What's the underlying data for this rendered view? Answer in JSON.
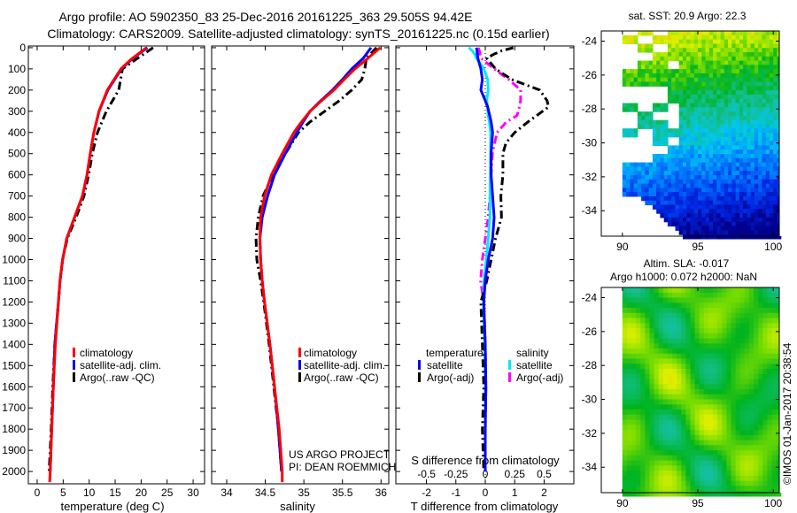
{
  "title": {
    "line1": "Argo profile: AO 5902350_83 25-Dec-2016 20161225_363 29.505S 94.42E",
    "line2": "Climatology: CARS2009. Satellite-adjusted climatology: synTS_20161225.nc (0.15d earlier)"
  },
  "credit": {
    "project": "US ARGO PROJECT",
    "pi": "PI: DEAN ROEMMICH",
    "stamp": "©IMOS 01-Jan-2017 20:38:54"
  },
  "colors": {
    "climatology": "#ff0000",
    "satellite": "#0000ff",
    "argo": "#000000",
    "sat_salinity": "#00e8ff",
    "argo_salinity": "#ff00ff"
  },
  "chart_data": [
    {
      "type": "line",
      "name": "temperature-profile",
      "xlabel": "temperature (deg C)",
      "ylabel": "depth",
      "xlim": [
        -1.7,
        32.2
      ],
      "ylim": [
        2058,
        -8
      ],
      "xticks": [
        0,
        5,
        10,
        15,
        20,
        25,
        30
      ],
      "yticks": [
        0,
        100,
        200,
        300,
        400,
        500,
        600,
        700,
        800,
        900,
        1000,
        1100,
        1200,
        1300,
        1400,
        1500,
        1600,
        1700,
        1800,
        1900,
        2000
      ],
      "legend": [
        "climatology",
        "satellite-adj. clim.",
        "Argo(..raw -QC)"
      ],
      "depth": [
        0,
        50,
        100,
        200,
        300,
        400,
        500,
        600,
        700,
        800,
        900,
        1000,
        1100,
        1200,
        1400,
        1600,
        1800,
        2000,
        2050
      ],
      "series": [
        {
          "name": "climatology",
          "color": "#ff0000",
          "values": [
            21.0,
            18.3,
            16.1,
            13.5,
            11.9,
            10.9,
            10.2,
            9.6,
            8.7,
            7.2,
            5.7,
            4.9,
            4.4,
            4.1,
            3.5,
            3.1,
            2.8,
            2.5,
            2.4
          ]
        },
        {
          "name": "satellite-adj. clim.",
          "color": "#0000ff",
          "values": [
            21.2,
            18.4,
            16.2,
            13.6,
            11.9,
            10.9,
            10.2,
            9.6,
            8.7,
            7.2,
            5.7,
            4.9,
            4.4,
            4.1,
            3.4,
            3.1,
            2.8,
            2.5,
            null
          ]
        },
        {
          "name": "Argo(..raw -QC)",
          "color": "#000000",
          "dashed": true,
          "values": [
            22.3,
            19.3,
            16.4,
            15.7,
            13.3,
            11.6,
            10.6,
            9.9,
            9.0,
            7.5,
            5.8,
            4.9,
            4.4,
            4.1,
            3.4,
            3.0,
            2.7,
            2.3,
            null
          ]
        }
      ]
    },
    {
      "type": "line",
      "name": "salinity-profile",
      "xlabel": "salinity",
      "xlim": [
        33.805,
        36.1
      ],
      "ylim": [
        2058,
        -8
      ],
      "xticks": [
        34,
        34.5,
        35,
        35.5,
        36
      ],
      "legend": [
        "climatology",
        "satellite-adj. clim.",
        "Argo(..raw -QC)"
      ],
      "depth": [
        0,
        50,
        100,
        150,
        200,
        250,
        300,
        350,
        400,
        500,
        600,
        700,
        800,
        900,
        1000,
        1100,
        1200,
        1400,
        1600,
        1800,
        2000,
        2050
      ],
      "series": [
        {
          "name": "climatology",
          "color": "#ff0000",
          "values": [
            35.99,
            35.83,
            35.66,
            35.52,
            35.39,
            35.23,
            35.08,
            34.97,
            34.87,
            34.72,
            34.58,
            34.49,
            34.44,
            34.43,
            34.44,
            34.46,
            34.49,
            34.56,
            34.62,
            34.68,
            34.72,
            34.72
          ]
        },
        {
          "name": "satellite-adj. clim.",
          "color": "#0000ff",
          "values": [
            35.87,
            35.77,
            35.62,
            35.5,
            35.37,
            35.22,
            35.08,
            34.99,
            34.91,
            34.76,
            34.62,
            34.53,
            34.46,
            34.43,
            34.44,
            34.46,
            34.49,
            34.56,
            34.62,
            34.67,
            34.71,
            null
          ]
        },
        {
          "name": "Argo(..raw -QC)",
          "color": "#000000",
          "dashed": true,
          "values": [
            35.94,
            35.81,
            35.79,
            35.75,
            35.62,
            35.46,
            35.27,
            35.08,
            34.93,
            34.76,
            34.6,
            34.47,
            34.41,
            34.38,
            34.39,
            34.44,
            34.48,
            34.55,
            34.61,
            34.67,
            34.71,
            null
          ]
        }
      ]
    },
    {
      "type": "line",
      "name": "difference-profile",
      "xlabel": "T difference from climatology",
      "xlabel2": "S difference from climatology",
      "xlim": [
        -3.04,
        3.01
      ],
      "ylim": [
        2058,
        -8
      ],
      "xticks": [
        -2,
        -1,
        0,
        1,
        2
      ],
      "xticks2": [
        -0.5,
        -0.25,
        0,
        0.25,
        0.5
      ],
      "xtick2_labels": [
        "-0.5",
        "-0.25",
        "0",
        "0.25",
        "0.5"
      ],
      "legend_temperature": {
        "title": "temperature",
        "items": [
          "satellite",
          "Argo(-adj)"
        ]
      },
      "legend_salinity": {
        "title": "salinity",
        "items": [
          "satellite",
          "Argo(-adj)"
        ]
      },
      "depth": [
        0,
        15,
        30,
        50,
        100,
        150,
        200,
        250,
        280,
        320,
        350,
        400,
        450,
        500,
        600,
        700,
        800,
        900,
        1000,
        1100,
        1200,
        1400,
        1600,
        1800,
        2000
      ],
      "series": [
        {
          "name": "temperature satellite",
          "color": "#0000ff",
          "units": "T",
          "values": [
            -0.3,
            -0.28,
            -0.27,
            -0.25,
            -0.15,
            -0.1,
            -0.15,
            0,
            0.08,
            0.15,
            0.2,
            0.25,
            0.22,
            0.2,
            0.2,
            0.25,
            0.3,
            0.25,
            0.1,
            0,
            -0.05,
            0,
            0.02,
            0,
            0
          ]
        },
        {
          "name": "temperature Argo(-adj)",
          "color": "#000000",
          "dashed": true,
          "units": "T",
          "values": [
            0.95,
            0.55,
            0.3,
            0.05,
            0.35,
            0.9,
            1.85,
            2.1,
            2.15,
            1.75,
            1.45,
            1.0,
            0.7,
            0.6,
            0.6,
            0.53,
            0.55,
            0.35,
            0.2,
            0.05,
            -0.15,
            -0.1,
            -0.05,
            -0.1,
            -0.05
          ]
        },
        {
          "name": "salinity satellite",
          "color": "#00e8ff",
          "units": "S",
          "values": [
            -0.14,
            -0.11,
            -0.09,
            -0.075,
            -0.012,
            0.02,
            0.025,
            0.012,
            0.02,
            0.025,
            0.035,
            0.045,
            0.045,
            0.045,
            0.043,
            0.04,
            0.04,
            0.025,
            0.008,
            -0.012,
            -0.015,
            -0.005,
            0,
            0,
            0
          ]
        },
        {
          "name": "salinity Argo(-adj)",
          "color": "#ff00ff",
          "dashed": true,
          "units": "S",
          "values": [
            -0.06,
            -0.05,
            -0.045,
            -0.035,
            0.075,
            0.2,
            0.3,
            0.3,
            0.29,
            0.27,
            0.18,
            0.1,
            0.08,
            0.06,
            0.05,
            0.04,
            0.025,
            0,
            -0.025,
            -0.04,
            -0.012,
            0,
            0.005,
            0,
            0
          ]
        }
      ]
    },
    {
      "type": "heatmap",
      "name": "sst-map",
      "title": "sat. SST: 20.9 Argo: 22.3",
      "xlim": [
        88.6,
        100.4
      ],
      "ylim": [
        -35.5,
        -23.4
      ],
      "xticks": [
        90,
        95,
        100
      ],
      "yticks": [
        -24,
        -26,
        -28,
        -30,
        -32,
        -34
      ]
    },
    {
      "type": "heatmap",
      "name": "sla-map",
      "title": "Altim. SLA: -0.017",
      "subtitle": "Argo h1000: 0.072 h2000: NaN",
      "xlim": [
        88.6,
        100.4
      ],
      "ylim": [
        -35.5,
        -23.4
      ],
      "xticks": [
        90,
        95,
        100
      ],
      "yticks": [
        -24,
        -26,
        -28,
        -30,
        -32,
        -34
      ]
    }
  ]
}
